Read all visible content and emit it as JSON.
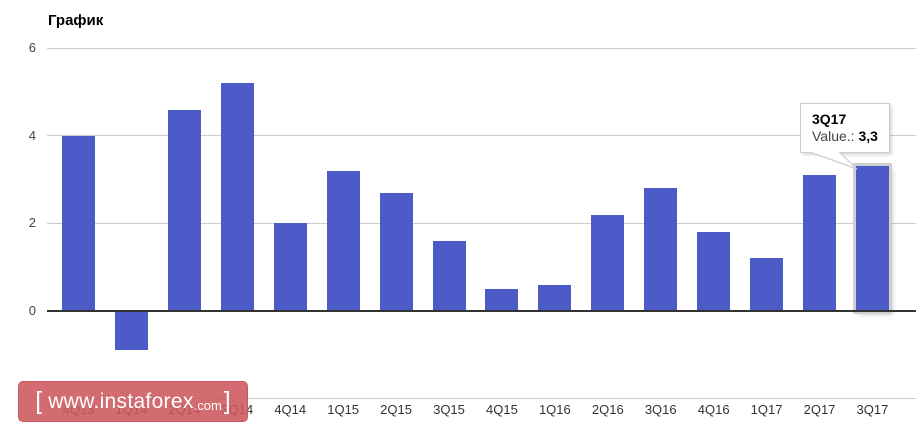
{
  "chart": {
    "title": "График"
  },
  "chart_data": {
    "type": "bar",
    "title": "График",
    "categories": [
      "4Q13",
      "1Q14",
      "2Q14",
      "3Q14",
      "4Q14",
      "1Q15",
      "2Q15",
      "3Q15",
      "4Q15",
      "1Q16",
      "2Q16",
      "3Q16",
      "4Q16",
      "1Q17",
      "2Q17",
      "3Q17"
    ],
    "values": [
      4.0,
      -0.9,
      4.6,
      5.2,
      2.0,
      3.2,
      2.7,
      1.6,
      0.5,
      0.6,
      2.2,
      2.8,
      1.8,
      1.2,
      3.1,
      3.3
    ],
    "xlabel": "",
    "ylabel": "",
    "ylim": [
      -2,
      6
    ],
    "y_ticks": [
      {
        "label": "6",
        "value": 6
      },
      {
        "label": "4",
        "value": 4
      },
      {
        "label": "2",
        "value": 2
      },
      {
        "label": "0",
        "value": 0
      }
    ],
    "extra_gridline_values": [
      -2
    ],
    "grid": true,
    "legend": "none",
    "bar_color": "#4d5bc8",
    "gridline_color": "#cccccc",
    "zero_line_color": "#333333",
    "highlighted_index": 15
  },
  "tooltip": {
    "period": "3Q17",
    "value_label": "Value.:",
    "value": "3,3"
  },
  "banner": {
    "bracket_left": "[",
    "domain": "www.instaforex",
    "tld": ".com",
    "bracket_right": "]",
    "background": "#cd585c"
  }
}
